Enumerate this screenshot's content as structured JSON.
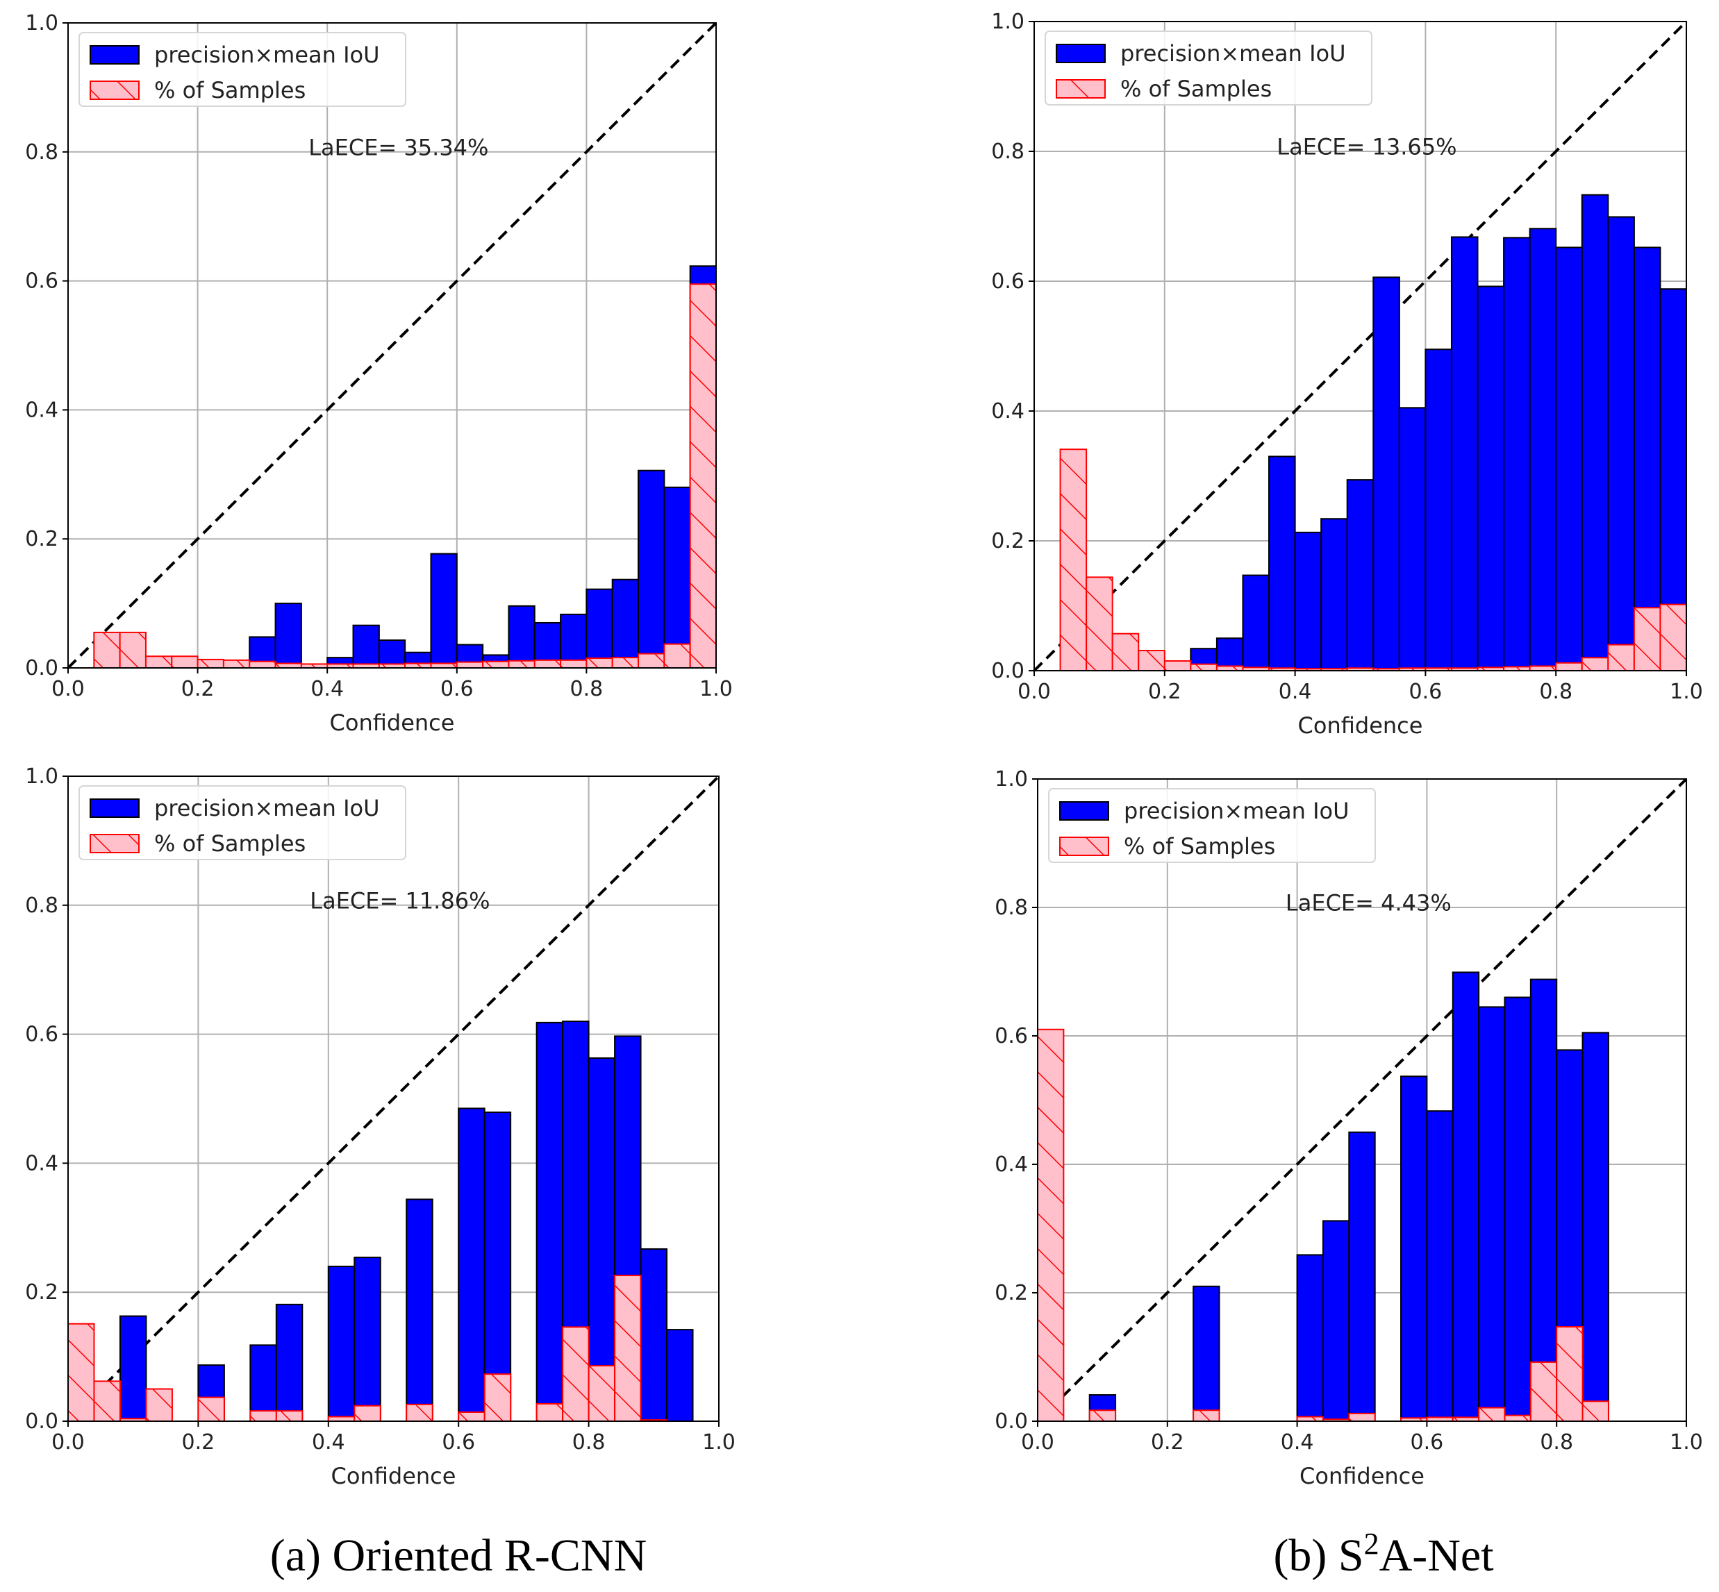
{
  "colors": {
    "precision_fill": "#0000ff",
    "precision_edge": "#000000",
    "samples_fill": "#ffc0cb",
    "samples_edge": "#ff0000",
    "grid": "#b0b0b0",
    "diagonal": "#000000"
  },
  "legend": {
    "precision_label": "precision×mean IoU",
    "samples_label": "% of Samples"
  },
  "captions": {
    "left": "(a) Oriented R-CNN",
    "right_prefix": "(b) S",
    "right_sup": "2",
    "right_suffix": "A-Net"
  },
  "chart_data": [
    {
      "type": "bar",
      "panel": "top-left",
      "model": "Oriented R-CNN",
      "xlabel": "Confidence",
      "ylabel": "",
      "xlim": [
        0.0,
        1.0
      ],
      "ylim": [
        0.0,
        1.0
      ],
      "ticks": [
        "0.0",
        "0.2",
        "0.4",
        "0.6",
        "0.8",
        "1.0"
      ],
      "grid": true,
      "legend_position": "upper-left",
      "annotation": "LaECE= 35.34%",
      "bin_width": 0.04,
      "bin_starts": [
        0.0,
        0.04,
        0.08,
        0.12,
        0.16,
        0.2,
        0.24,
        0.28,
        0.32,
        0.36,
        0.4,
        0.44,
        0.48,
        0.52,
        0.56,
        0.6,
        0.64,
        0.68,
        0.72,
        0.76,
        0.8,
        0.84,
        0.88,
        0.92,
        0.96
      ],
      "series": [
        {
          "name": "precision×mean IoU",
          "values": [
            0.0,
            0.0,
            0.0,
            0.0,
            0.0,
            0.0,
            0.0,
            0.048,
            0.1,
            0.0,
            0.016,
            0.066,
            0.043,
            0.024,
            0.177,
            0.036,
            0.02,
            0.096,
            0.07,
            0.083,
            0.122,
            0.137,
            0.306,
            0.28,
            0.623
          ]
        },
        {
          "name": "% of Samples",
          "values": [
            0.0,
            0.055,
            0.055,
            0.018,
            0.018,
            0.013,
            0.012,
            0.01,
            0.007,
            0.006,
            0.006,
            0.006,
            0.006,
            0.007,
            0.007,
            0.009,
            0.01,
            0.011,
            0.012,
            0.012,
            0.015,
            0.016,
            0.022,
            0.037,
            0.595
          ]
        }
      ]
    },
    {
      "type": "bar",
      "panel": "top-right",
      "model": "S2A-Net",
      "xlabel": "Confidence",
      "ylabel": "",
      "xlim": [
        0.0,
        1.0
      ],
      "ylim": [
        0.0,
        1.0
      ],
      "ticks": [
        "0.0",
        "0.2",
        "0.4",
        "0.6",
        "0.8",
        "1.0"
      ],
      "grid": true,
      "legend_position": "upper-left",
      "annotation": "LaECE= 13.65%",
      "bin_width": 0.04,
      "bin_starts": [
        0.0,
        0.04,
        0.08,
        0.12,
        0.16,
        0.2,
        0.24,
        0.28,
        0.32,
        0.36,
        0.4,
        0.44,
        0.48,
        0.52,
        0.56,
        0.6,
        0.64,
        0.68,
        0.72,
        0.76,
        0.8,
        0.84,
        0.88,
        0.92,
        0.96
      ],
      "series": [
        {
          "name": "precision×mean IoU",
          "values": [
            0.0,
            0.0,
            0.0,
            0.0,
            0.0,
            0.0,
            0.034,
            0.05,
            0.147,
            0.33,
            0.213,
            0.234,
            0.294,
            0.606,
            0.405,
            0.495,
            0.668,
            0.592,
            0.667,
            0.681,
            0.652,
            0.733,
            0.699,
            0.652,
            0.588
          ]
        },
        {
          "name": "% of Samples",
          "values": [
            0.0,
            0.341,
            0.144,
            0.057,
            0.031,
            0.015,
            0.01,
            0.007,
            0.005,
            0.004,
            0.003,
            0.003,
            0.004,
            0.003,
            0.004,
            0.004,
            0.004,
            0.005,
            0.006,
            0.007,
            0.012,
            0.02,
            0.04,
            0.097,
            0.102
          ]
        }
      ]
    },
    {
      "type": "bar",
      "panel": "bottom-left",
      "model": "Oriented R-CNN",
      "xlabel": "Confidence",
      "ylabel": "",
      "xlim": [
        0.0,
        1.0
      ],
      "ylim": [
        0.0,
        1.0
      ],
      "ticks": [
        "0.0",
        "0.2",
        "0.4",
        "0.6",
        "0.8",
        "1.0"
      ],
      "grid": true,
      "legend_position": "upper-left",
      "annotation": "LaECE= 11.86%",
      "bin_width": 0.04,
      "bin_starts": [
        0.0,
        0.04,
        0.08,
        0.12,
        0.16,
        0.2,
        0.24,
        0.28,
        0.32,
        0.36,
        0.4,
        0.44,
        0.48,
        0.52,
        0.56,
        0.6,
        0.64,
        0.68,
        0.72,
        0.76,
        0.8,
        0.84,
        0.88,
        0.92,
        0.96
      ],
      "series": [
        {
          "name": "precision×mean IoU",
          "values": [
            0.0,
            0.0,
            0.163,
            0.0,
            0.0,
            0.087,
            0.0,
            0.118,
            0.181,
            0.0,
            0.24,
            0.254,
            0.0,
            0.344,
            0.0,
            0.485,
            0.479,
            0.0,
            0.618,
            0.62,
            0.563,
            0.597,
            0.267,
            0.142,
            0.0
          ]
        },
        {
          "name": "% of Samples",
          "values": [
            0.151,
            0.062,
            0.004,
            0.05,
            0.0,
            0.037,
            0.0,
            0.016,
            0.016,
            0.0,
            0.007,
            0.024,
            0.0,
            0.026,
            0.0,
            0.014,
            0.073,
            0.0,
            0.027,
            0.146,
            0.086,
            0.226,
            0.002,
            0.0,
            0.0
          ]
        }
      ]
    },
    {
      "type": "bar",
      "panel": "bottom-right",
      "model": "S2A-Net",
      "xlabel": "Confidence",
      "ylabel": "",
      "xlim": [
        0.0,
        1.0
      ],
      "ylim": [
        0.0,
        1.0
      ],
      "ticks": [
        "0.0",
        "0.2",
        "0.4",
        "0.6",
        "0.8",
        "1.0"
      ],
      "grid": true,
      "legend_position": "upper-left",
      "annotation": "LaECE= 4.43%",
      "bin_width": 0.04,
      "bin_starts": [
        0.0,
        0.04,
        0.08,
        0.12,
        0.16,
        0.2,
        0.24,
        0.28,
        0.32,
        0.36,
        0.4,
        0.44,
        0.48,
        0.52,
        0.56,
        0.6,
        0.64,
        0.68,
        0.72,
        0.76,
        0.8,
        0.84,
        0.88,
        0.92,
        0.96
      ],
      "series": [
        {
          "name": "precision×mean IoU",
          "values": [
            0.0,
            0.0,
            0.041,
            0.0,
            0.0,
            0.0,
            0.21,
            0.0,
            0.0,
            0.0,
            0.259,
            0.312,
            0.45,
            0.0,
            0.537,
            0.483,
            0.699,
            0.645,
            0.66,
            0.688,
            0.578,
            0.605,
            0.0,
            0.0,
            0.0
          ]
        },
        {
          "name": "% of Samples",
          "values": [
            0.61,
            0.0,
            0.017,
            0.0,
            0.0,
            0.0,
            0.017,
            0.0,
            0.0,
            0.0,
            0.007,
            0.003,
            0.012,
            0.0,
            0.005,
            0.006,
            0.006,
            0.021,
            0.009,
            0.092,
            0.147,
            0.031,
            0.0,
            0.0,
            0.0
          ]
        }
      ]
    }
  ]
}
